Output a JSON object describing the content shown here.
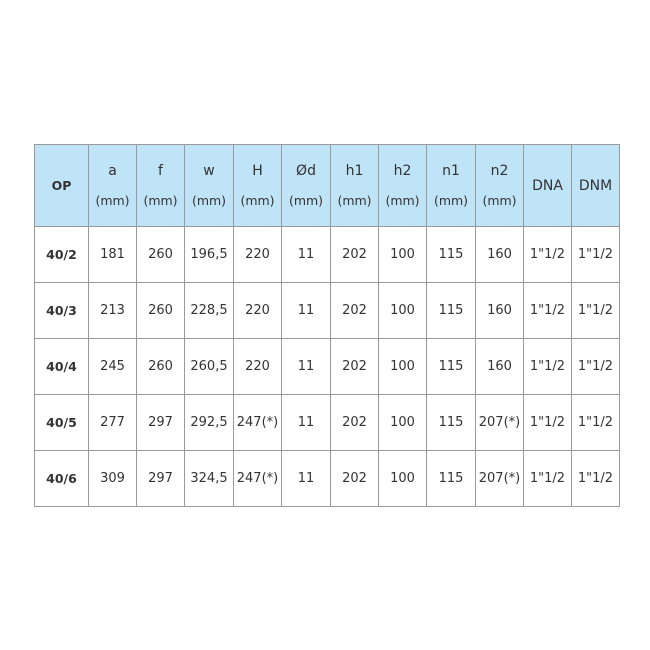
{
  "header": {
    "op": "OP",
    "columns": [
      {
        "label": "a",
        "unit": "(mm)"
      },
      {
        "label": "f",
        "unit": "(mm)"
      },
      {
        "label": "w",
        "unit": "(mm)"
      },
      {
        "label": "H",
        "unit": "(mm)"
      },
      {
        "label": "Ød",
        "unit": "(mm)"
      },
      {
        "label": "h1",
        "unit": "(mm)"
      },
      {
        "label": "h2",
        "unit": "(mm)"
      },
      {
        "label": "n1",
        "unit": "(mm)"
      },
      {
        "label": "n2",
        "unit": "(mm)"
      },
      {
        "label": "DNA",
        "unit": ""
      },
      {
        "label": "DNM",
        "unit": ""
      }
    ]
  },
  "rows": [
    [
      "40/2",
      "181",
      "260",
      "196,5",
      "220",
      "11",
      "202",
      "100",
      "115",
      "160",
      "1\"1/2",
      "1\"1/2"
    ],
    [
      "40/3",
      "213",
      "260",
      "228,5",
      "220",
      "11",
      "202",
      "100",
      "115",
      "160",
      "1\"1/2",
      "1\"1/2"
    ],
    [
      "40/4",
      "245",
      "260",
      "260,5",
      "220",
      "11",
      "202",
      "100",
      "115",
      "160",
      "1\"1/2",
      "1\"1/2"
    ],
    [
      "40/5",
      "277",
      "297",
      "292,5",
      "247(*)",
      "11",
      "202",
      "100",
      "115",
      "207(*)",
      "1\"1/2",
      "1\"1/2"
    ],
    [
      "40/6",
      "309",
      "297",
      "324,5",
      "247(*)",
      "11",
      "202",
      "100",
      "115",
      "207(*)",
      "1\"1/2",
      "1\"1/2"
    ]
  ],
  "colors": {
    "header_bg": "#bfe3f7",
    "border": "#9a9a9a"
  }
}
